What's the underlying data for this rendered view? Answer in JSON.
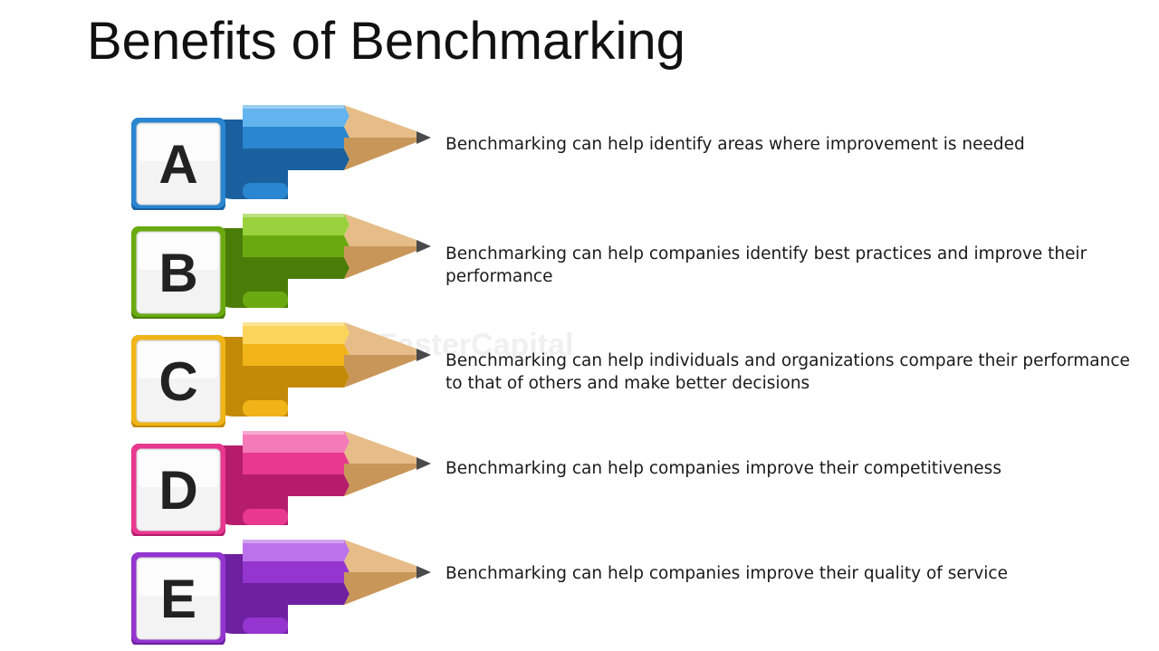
{
  "title": "Benefits of Benchmarking",
  "watermark": "FasterCapital",
  "items": [
    {
      "letter": "A",
      "text": "Benchmarking can help identify areas where improvement is needed",
      "color": "#2a86d0",
      "light": "#63b3ee",
      "dark": "#1a5f9e"
    },
    {
      "letter": "B",
      "text": "Benchmarking can help companies identify best practices and improve their performance",
      "color": "#6aaa10",
      "light": "#9ad23e",
      "dark": "#4a7d08"
    },
    {
      "letter": "C",
      "text": "Benchmarking can help individuals and organizations compare their performance to that of others and make better decisions",
      "color": "#f0b418",
      "light": "#fbd45a",
      "dark": "#c38a08"
    },
    {
      "letter": "D",
      "text": "Benchmarking can help companies improve their competitiveness",
      "color": "#e8388f",
      "light": "#f57ab8",
      "dark": "#b51d6c"
    },
    {
      "letter": "E",
      "text": "Benchmarking can help companies improve their quality of service",
      "color": "#9435cf",
      "light": "#bb72ea",
      "dark": "#6d20a0"
    }
  ]
}
